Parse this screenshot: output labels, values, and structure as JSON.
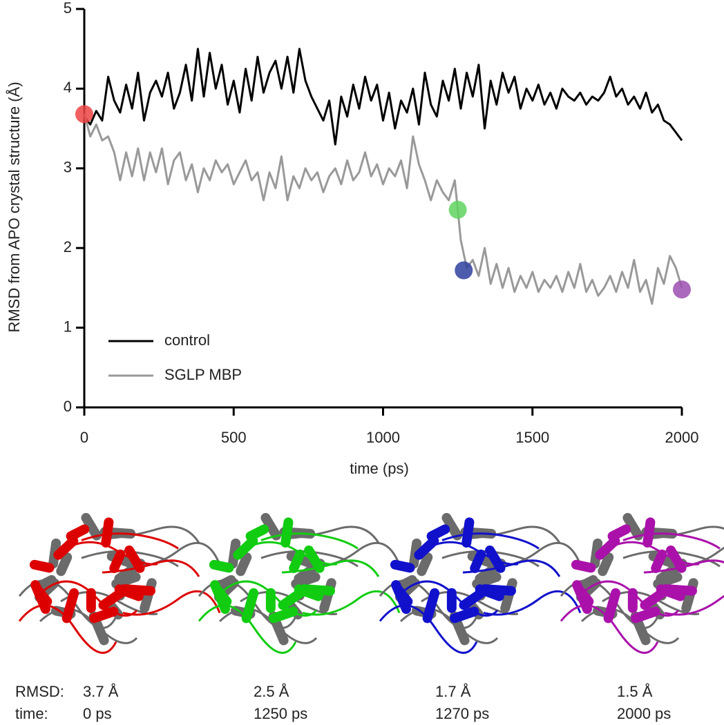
{
  "chart_data": {
    "type": "line",
    "xlabel": "time (ps)",
    "ylabel": "RMSD from APO crystal structure (Å)",
    "x": [
      0,
      20,
      40,
      60,
      80,
      100,
      120,
      140,
      160,
      180,
      200,
      220,
      240,
      260,
      280,
      300,
      320,
      340,
      360,
      380,
      400,
      420,
      440,
      460,
      480,
      500,
      520,
      540,
      560,
      580,
      600,
      620,
      640,
      660,
      680,
      700,
      720,
      740,
      760,
      780,
      800,
      820,
      840,
      860,
      880,
      900,
      920,
      940,
      960,
      980,
      1000,
      1020,
      1040,
      1060,
      1080,
      1100,
      1120,
      1140,
      1160,
      1180,
      1200,
      1220,
      1240,
      1260,
      1280,
      1300,
      1320,
      1340,
      1360,
      1380,
      1400,
      1420,
      1440,
      1460,
      1480,
      1500,
      1520,
      1540,
      1560,
      1580,
      1600,
      1620,
      1640,
      1660,
      1680,
      1700,
      1720,
      1740,
      1760,
      1780,
      1800,
      1820,
      1840,
      1860,
      1880,
      1900,
      1920,
      1940,
      1960,
      1980,
      2000
    ],
    "series": [
      {
        "name": "control",
        "color": "#000000",
        "values": [
          3.65,
          3.55,
          3.72,
          3.6,
          4.15,
          3.85,
          3.7,
          4.05,
          3.75,
          4.2,
          3.6,
          3.95,
          4.1,
          3.9,
          4.2,
          3.75,
          3.95,
          4.3,
          3.85,
          4.5,
          3.9,
          4.45,
          4.0,
          4.3,
          3.8,
          4.1,
          3.7,
          4.25,
          3.85,
          4.4,
          3.95,
          4.2,
          4.35,
          4.0,
          4.4,
          3.95,
          4.5,
          4.1,
          3.9,
          3.75,
          3.6,
          3.85,
          3.3,
          3.9,
          3.65,
          4.05,
          3.75,
          4.15,
          3.85,
          4.05,
          3.6,
          3.95,
          3.5,
          3.85,
          3.7,
          4.0,
          3.55,
          4.2,
          3.8,
          3.65,
          4.1,
          3.85,
          4.25,
          3.75,
          4.2,
          3.9,
          4.3,
          3.5,
          4.1,
          3.8,
          4.2,
          3.95,
          4.15,
          3.75,
          4.0,
          3.85,
          4.05,
          3.8,
          3.95,
          3.75,
          4.0,
          3.9,
          3.85,
          3.95,
          3.8,
          3.9,
          3.85,
          3.95,
          4.15,
          3.9,
          4.0,
          3.8,
          3.9,
          3.75,
          3.95,
          3.7,
          3.8,
          3.6,
          3.55,
          3.45,
          3.35
        ]
      },
      {
        "name": "SGLP MBP",
        "color": "#999999",
        "values": [
          3.68,
          3.4,
          3.55,
          3.35,
          3.4,
          3.2,
          2.85,
          3.2,
          2.9,
          3.25,
          2.85,
          3.2,
          2.95,
          3.25,
          2.8,
          3.1,
          3.2,
          2.85,
          3.05,
          2.7,
          3.0,
          2.85,
          3.1,
          2.95,
          3.05,
          2.8,
          2.95,
          3.1,
          2.85,
          2.95,
          2.6,
          2.95,
          2.75,
          3.15,
          2.6,
          2.9,
          2.75,
          3.0,
          2.85,
          2.95,
          2.7,
          2.9,
          3.0,
          2.8,
          3.1,
          2.85,
          2.95,
          3.2,
          2.9,
          3.05,
          2.8,
          3.0,
          2.9,
          3.1,
          2.75,
          3.4,
          3.05,
          2.85,
          2.6,
          2.85,
          2.7,
          2.6,
          2.85,
          2.1,
          1.75,
          1.85,
          1.65,
          2.0,
          1.55,
          1.8,
          1.5,
          1.75,
          1.45,
          1.65,
          1.5,
          1.7,
          1.45,
          1.6,
          1.5,
          1.65,
          1.45,
          1.7,
          1.5,
          1.8,
          1.45,
          1.6,
          1.4,
          1.5,
          1.65,
          1.45,
          1.7,
          1.5,
          1.85,
          1.45,
          1.6,
          1.3,
          1.75,
          1.55,
          1.9,
          1.75,
          1.5
        ]
      }
    ],
    "markers": [
      {
        "x": 0,
        "y": 3.68,
        "color": "#ef4444"
      },
      {
        "x": 1250,
        "y": 2.48,
        "color": "#5fd35f"
      },
      {
        "x": 1270,
        "y": 1.72,
        "color": "#2f3f9f"
      },
      {
        "x": 2000,
        "y": 1.48,
        "color": "#9b4fb0"
      }
    ],
    "xlim": [
      0,
      2000
    ],
    "xticks": [
      0,
      500,
      1000,
      1500,
      2000
    ],
    "ylim": [
      0,
      5
    ],
    "yticks": [
      0,
      1,
      2,
      3,
      4,
      5
    ],
    "legend": "lower left"
  },
  "panels": {
    "rmsd_label": "RMSD:",
    "time_label": "time:",
    "items": [
      {
        "rmsd": "3.7 Å",
        "time": "0 ps",
        "color": "#dd0000"
      },
      {
        "rmsd": "2.5 Å",
        "time": "1250 ps",
        "color": "#11cc11"
      },
      {
        "rmsd": "1.7 Å",
        "time": "1270 ps",
        "color": "#1111cc"
      },
      {
        "rmsd": "1.5 Å",
        "time": "2000 ps",
        "color": "#aa11aa"
      }
    ]
  }
}
